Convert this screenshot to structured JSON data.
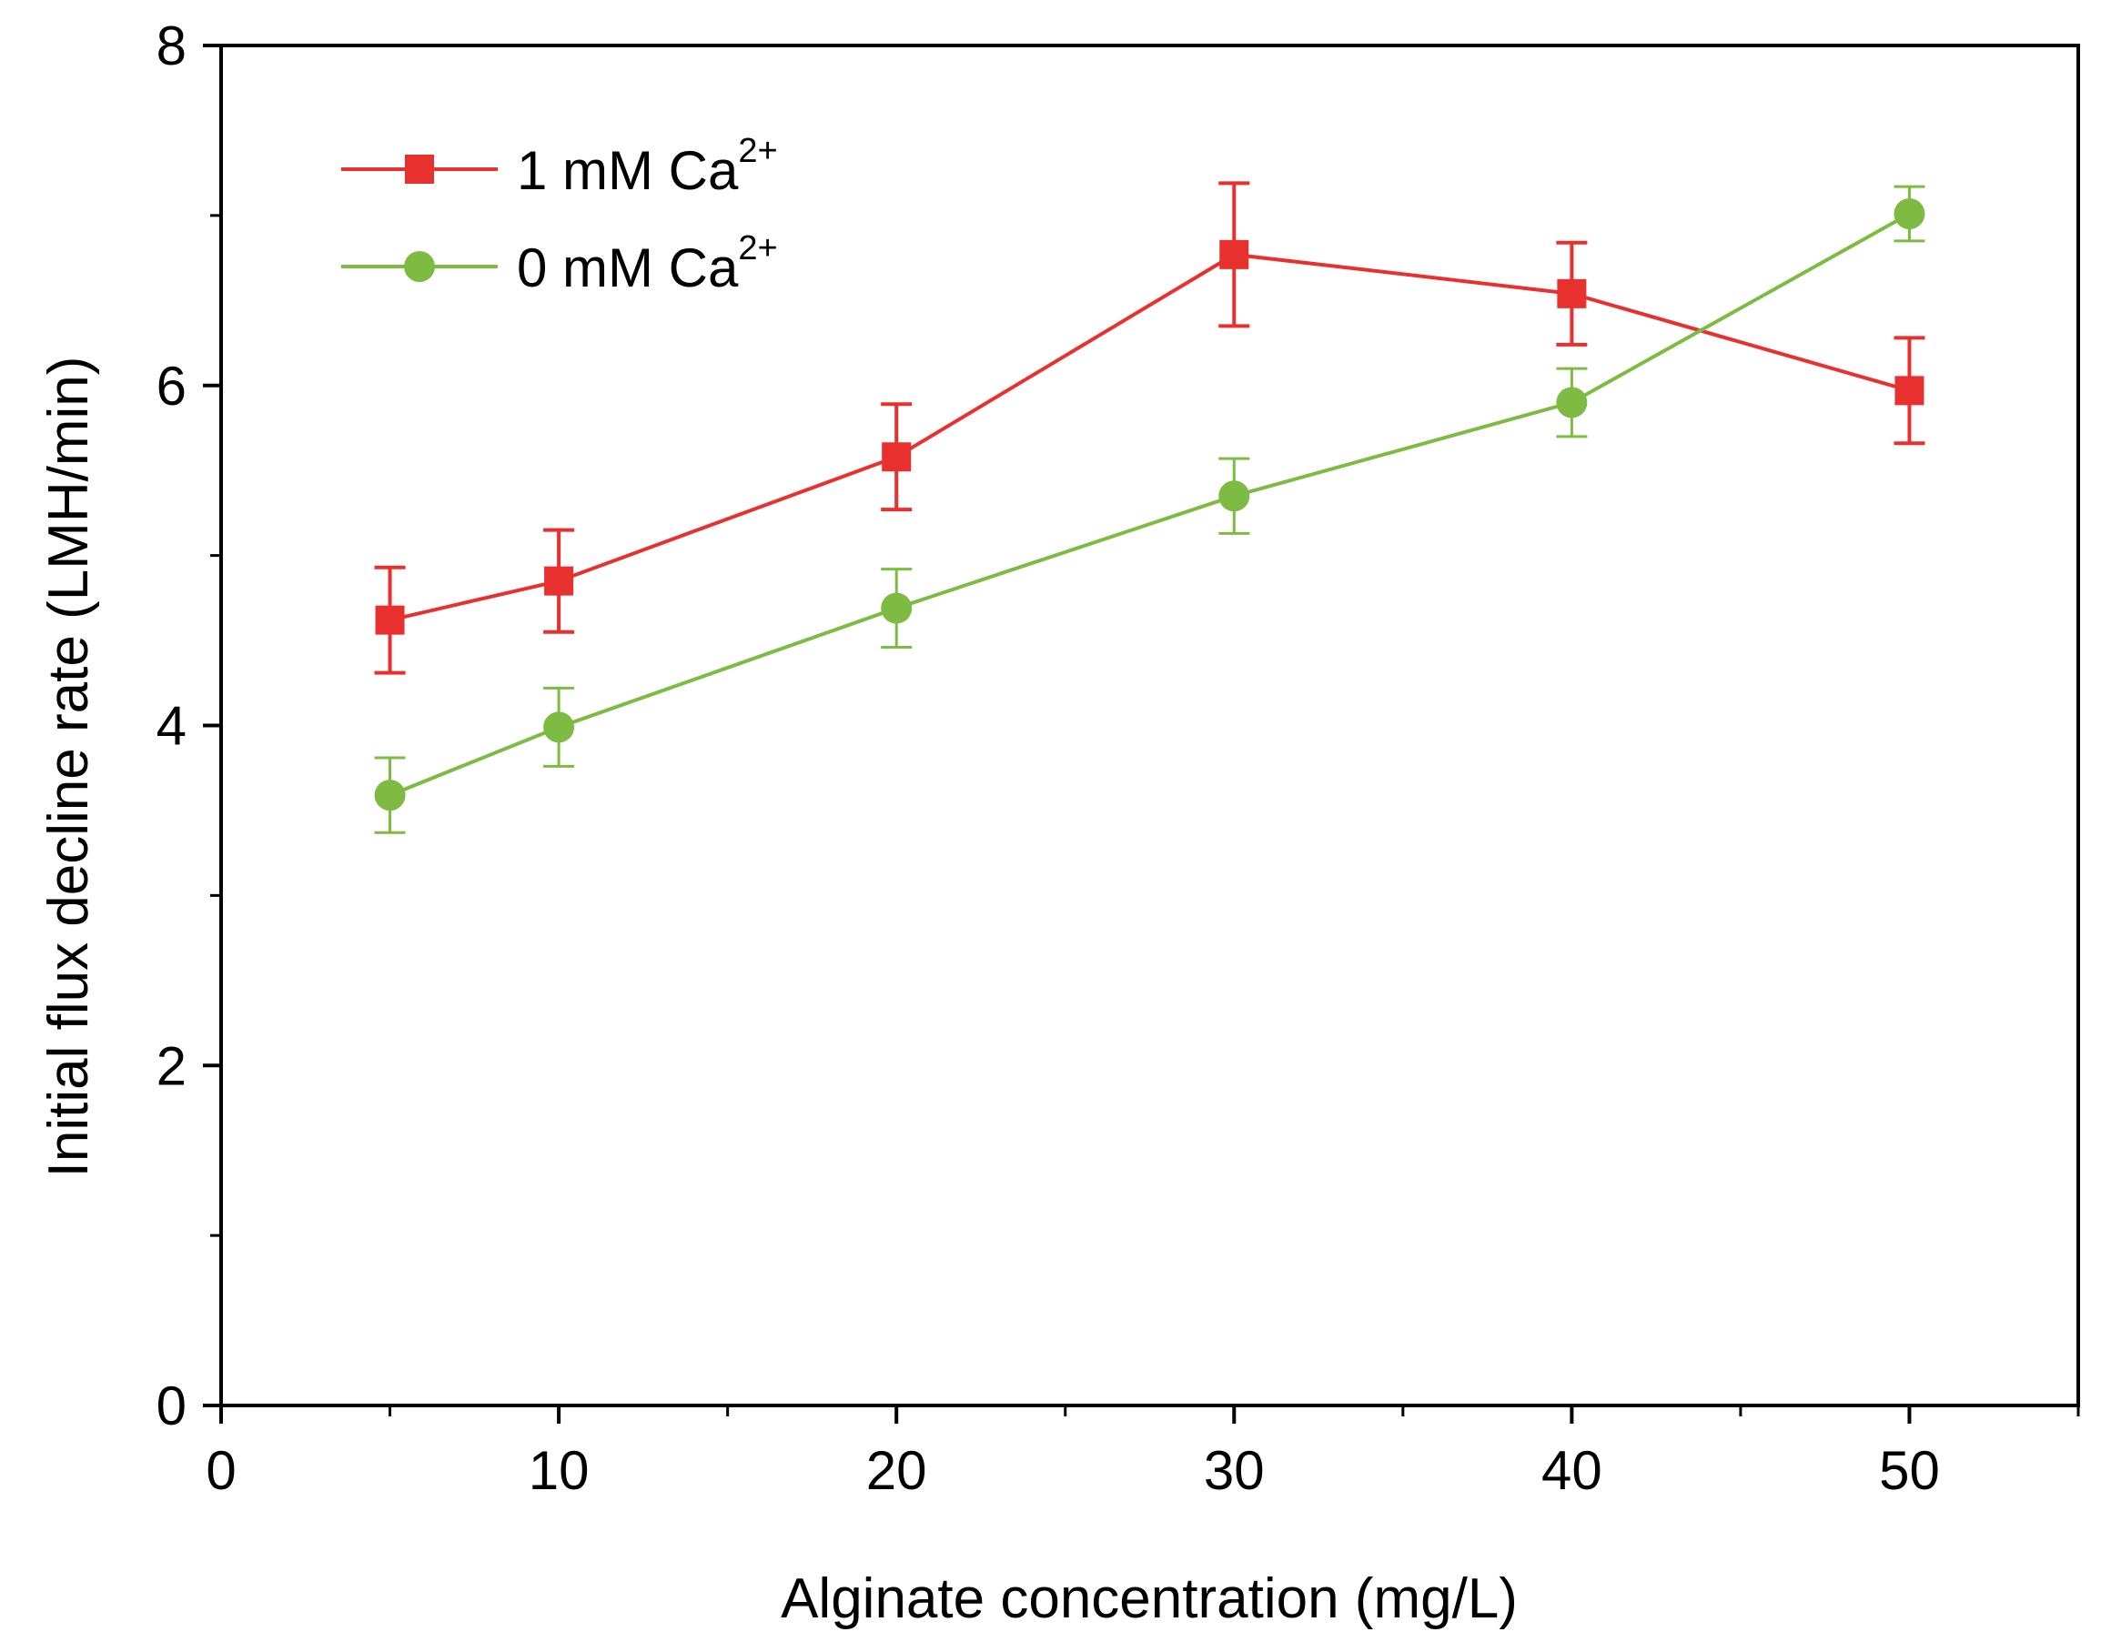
{
  "chart_data": {
    "type": "line",
    "title": "",
    "xlabel": "Alginate concentration (mg/L)",
    "ylabel": "Initial flux decline rate (LMH/min)",
    "xlim": [
      0,
      55
    ],
    "ylim": [
      0,
      8
    ],
    "x_ticks": [
      0,
      10,
      20,
      30,
      40,
      50
    ],
    "y_ticks": [
      0,
      2,
      4,
      6,
      8
    ],
    "x_minor_ticks": [
      5,
      15,
      25,
      35,
      45,
      55
    ],
    "y_minor_ticks": [
      1,
      3,
      5,
      7
    ],
    "grid": false,
    "legend_position": "top-left",
    "series": [
      {
        "name": "1 mM Ca",
        "superscript": "2+",
        "color": "#e8312f",
        "marker": "square",
        "x": [
          5,
          10,
          20,
          30,
          40,
          50
        ],
        "y": [
          4.62,
          4.85,
          5.58,
          6.77,
          6.54,
          5.97
        ],
        "err": [
          0.31,
          0.3,
          0.31,
          0.42,
          0.3,
          0.31
        ]
      },
      {
        "name": "0 mM Ca",
        "superscript": "2+",
        "color": "#7dbb42",
        "marker": "circle",
        "x": [
          5,
          10,
          20,
          30,
          40,
          50
        ],
        "y": [
          3.59,
          3.99,
          4.69,
          5.35,
          5.9,
          7.01
        ],
        "err": [
          0.22,
          0.23,
          0.23,
          0.22,
          0.2,
          0.16
        ]
      }
    ]
  }
}
